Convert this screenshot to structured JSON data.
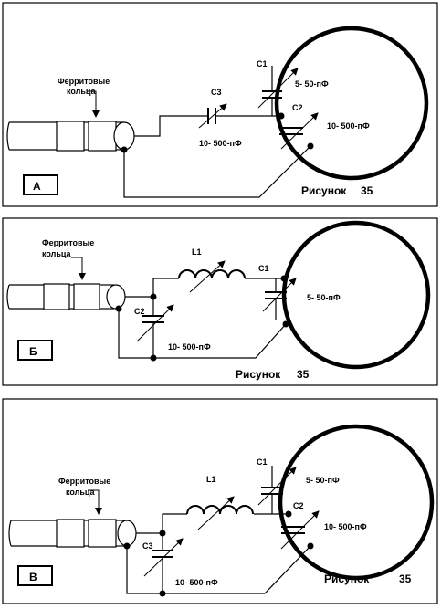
{
  "panels": [
    {
      "letter": "А",
      "ferrite_line1": "Ферритовые",
      "ferrite_line2": "кольца",
      "c1": "C1",
      "c1_value": "5- 50-пФ",
      "c2": "C2",
      "c2_value": "10- 500-пФ",
      "c3": "C3",
      "c3_value": "10- 500-пФ",
      "caption": "Рисунок",
      "number": "35"
    },
    {
      "letter": "Б",
      "ferrite_line1": "Ферритовые",
      "ferrite_line2": "кольца",
      "l1": "L1",
      "c1": "C1",
      "c1_value": "5- 50-пФ",
      "c2": "C2",
      "c2_value": "10- 500-пФ",
      "caption": "Рисунок",
      "number": "35"
    },
    {
      "letter": "В",
      "ferrite_line1": "Ферритовые",
      "ferrite_line2": "кольца",
      "l1": "L1",
      "c1": "C1",
      "c1_value": "5- 50-пФ",
      "c2": "C2",
      "c2_value": "10- 500-пФ",
      "c3": "C3",
      "c3_value": "10- 500-пФ",
      "caption": "Рисунок",
      "number": "35"
    }
  ]
}
